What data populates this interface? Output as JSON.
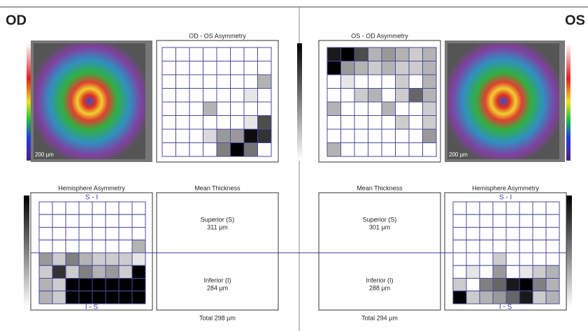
{
  "header": {
    "left_eye": "OD",
    "right_eye": "OS"
  },
  "od_os_asymmetry": {
    "title": "OD - OS Asymmetry",
    "cells": [
      [
        0,
        0,
        0,
        0,
        0,
        0,
        0,
        0
      ],
      [
        0,
        0,
        0,
        0,
        0,
        0,
        0,
        0
      ],
      [
        0,
        0,
        0,
        0,
        0,
        0,
        0,
        30
      ],
      [
        0,
        0,
        0,
        0,
        0,
        0,
        10,
        0
      ],
      [
        0,
        0,
        0,
        30,
        0,
        0,
        0,
        0
      ],
      [
        0,
        0,
        0,
        0,
        0,
        0,
        10,
        70
      ],
      [
        0,
        0,
        0,
        15,
        40,
        40,
        95,
        80
      ],
      [
        0,
        0,
        0,
        0,
        50,
        100,
        55,
        0
      ]
    ]
  },
  "os_od_asymmetry": {
    "title": "OS - OD Asymmetry",
    "cells": [
      [
        90,
        100,
        70,
        30,
        40,
        30,
        20,
        30
      ],
      [
        100,
        40,
        30,
        20,
        30,
        20,
        20,
        30
      ],
      [
        0,
        10,
        0,
        0,
        0,
        20,
        0,
        30
      ],
      [
        0,
        0,
        20,
        30,
        0,
        20,
        60,
        30
      ],
      [
        30,
        0,
        0,
        0,
        30,
        0,
        0,
        20
      ],
      [
        0,
        0,
        0,
        0,
        0,
        20,
        0,
        20
      ],
      [
        0,
        0,
        0,
        0,
        0,
        0,
        0,
        40
      ],
      [
        30,
        0,
        0,
        0,
        0,
        0,
        0,
        0
      ]
    ]
  },
  "od_hemisphere": {
    "title": "Hemisphere Asymmetry",
    "top_label": "S - I",
    "bottom_label": "I - S",
    "cells": [
      [
        0,
        0,
        0,
        0,
        0,
        0,
        0,
        0
      ],
      [
        0,
        0,
        0,
        0,
        0,
        0,
        0,
        0
      ],
      [
        0,
        0,
        0,
        0,
        0,
        0,
        0,
        0
      ],
      [
        0,
        0,
        0,
        0,
        0,
        0,
        0,
        30
      ],
      [
        40,
        20,
        50,
        30,
        20,
        20,
        20,
        10
      ],
      [
        20,
        80,
        20,
        50,
        30,
        40,
        20,
        100
      ],
      [
        30,
        20,
        100,
        100,
        100,
        100,
        100,
        100
      ],
      [
        30,
        20,
        100,
        100,
        100,
        100,
        100,
        100
      ]
    ]
  },
  "os_hemisphere": {
    "title": "Hemisphere Asymmetry",
    "top_label": "S - I",
    "bottom_label": "I - S",
    "cells": [
      [
        0,
        0,
        0,
        0,
        0,
        0,
        0,
        0
      ],
      [
        0,
        0,
        0,
        0,
        0,
        0,
        0,
        0
      ],
      [
        0,
        0,
        0,
        0,
        0,
        0,
        0,
        0
      ],
      [
        0,
        0,
        0,
        0,
        0,
        0,
        0,
        0
      ],
      [
        0,
        0,
        0,
        20,
        0,
        0,
        0,
        0
      ],
      [
        0,
        10,
        0,
        40,
        0,
        10,
        20,
        30
      ],
      [
        20,
        0,
        50,
        60,
        90,
        100,
        50,
        30
      ],
      [
        100,
        20,
        30,
        40,
        60,
        90,
        20,
        30
      ]
    ]
  },
  "od_mean": {
    "title": "Mean Thickness",
    "superior_label": "Superior (S)",
    "superior_value": "311 µm",
    "inferior_label": "Inferior (I)",
    "inferior_value": "284 µm",
    "total": "Total 298 µm"
  },
  "os_mean": {
    "title": "Mean Thickness",
    "superior_label": "Superior (S)",
    "superior_value": "301 µm",
    "inferior_label": "Inferior (I)",
    "inferior_value": "288 µm",
    "total": "Total 294 µm"
  },
  "od_scale": "200 µm",
  "os_scale": "200 µm"
}
